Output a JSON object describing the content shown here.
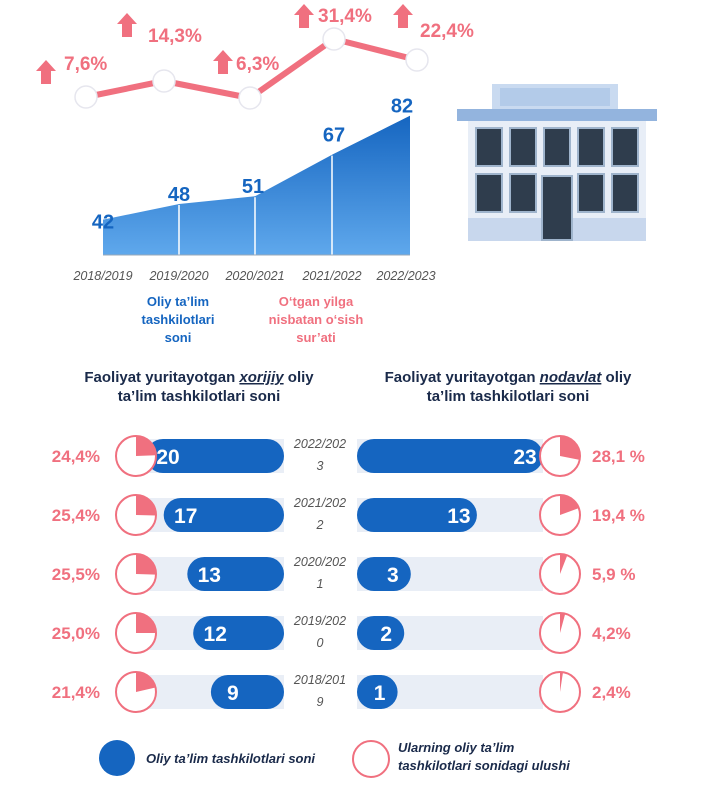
{
  "colors": {
    "blue": "#1565c0",
    "pink": "#f0707f",
    "track": "#e9eef6",
    "text": "#1a2a4a",
    "gray": "#555555"
  },
  "chart_data": [
    {
      "type": "area",
      "categories": [
        "2018/2019",
        "2019/2020",
        "2020/2021",
        "2021/2022",
        "2022/2023"
      ],
      "series": [
        {
          "name": "Oliy ta’lim tashkilotlari soni",
          "values": [
            42,
            48,
            51,
            67,
            82
          ]
        }
      ]
    },
    {
      "type": "line",
      "categories": [
        "2018/2019",
        "2019/2020",
        "2020/2021",
        "2021/2022",
        "2022/2023"
      ],
      "series": [
        {
          "name": "O‘tgan yilga nisbatan o‘sish sur’ati",
          "values": [
            7.6,
            14.3,
            6.3,
            31.4,
            22.4
          ],
          "labels": [
            "7,6%",
            "14,3%",
            "6,3%",
            "31,4%",
            "22,4%"
          ]
        }
      ]
    },
    {
      "type": "bar",
      "title": "Faoliyat yuritayotgan xorijiy oliy ta’lim tashkilotlari soni",
      "categories": [
        "2022/2023",
        "2021/2022",
        "2020/2021",
        "2019/2020",
        "2018/2019"
      ],
      "values": [
        20,
        17,
        13,
        12,
        9
      ],
      "share": [
        24.4,
        25.4,
        25.5,
        25.0,
        21.4
      ],
      "share_labels": [
        "24,4%",
        "25,4%",
        "25,5%",
        "25,0%",
        "21,4%"
      ]
    },
    {
      "type": "bar",
      "title": "Faoliyat yuritayotgan nodavlat oliy ta’lim tashkilotlari soni",
      "categories": [
        "2022/2023",
        "2021/2022",
        "2020/2021",
        "2019/2020",
        "2018/2019"
      ],
      "values": [
        23,
        13,
        3,
        2,
        1
      ],
      "share": [
        28.1,
        19.4,
        5.9,
        4.2,
        2.4
      ],
      "share_labels": [
        "28,1 %",
        "19,4 %",
        "5,9 %",
        "4,2%",
        "2,4%"
      ]
    }
  ],
  "top_legend": {
    "count": [
      "Oliy ta’lim",
      "tashkilotlari",
      "soni"
    ],
    "growth": [
      "O‘tgan yilga",
      "nisbatan o‘sish",
      "sur’ati"
    ]
  },
  "headings": {
    "left": {
      "pre": "Faoliyat yuritayotgan ",
      "em": "xorijiy",
      "post": " oliy",
      "line2": "ta’lim tashkilotlari soni"
    },
    "right": {
      "pre": "Faoliyat yuritayotgan ",
      "em": "nodavlat",
      "post": " oliy",
      "line2": "ta’lim tashkilotlari soni"
    }
  },
  "year_labels": [
    [
      "2022/202",
      "3"
    ],
    [
      "2021/202",
      "2"
    ],
    [
      "2020/202",
      "1"
    ],
    [
      "2019/202",
      "0"
    ],
    [
      "2018/201",
      "9"
    ]
  ],
  "bottom_legend": {
    "count": "Oliy ta’lim tashkilotlari soni",
    "share": [
      "Ularning oliy ta’lim",
      "tashkilotlari sonidagi ulushi"
    ]
  }
}
